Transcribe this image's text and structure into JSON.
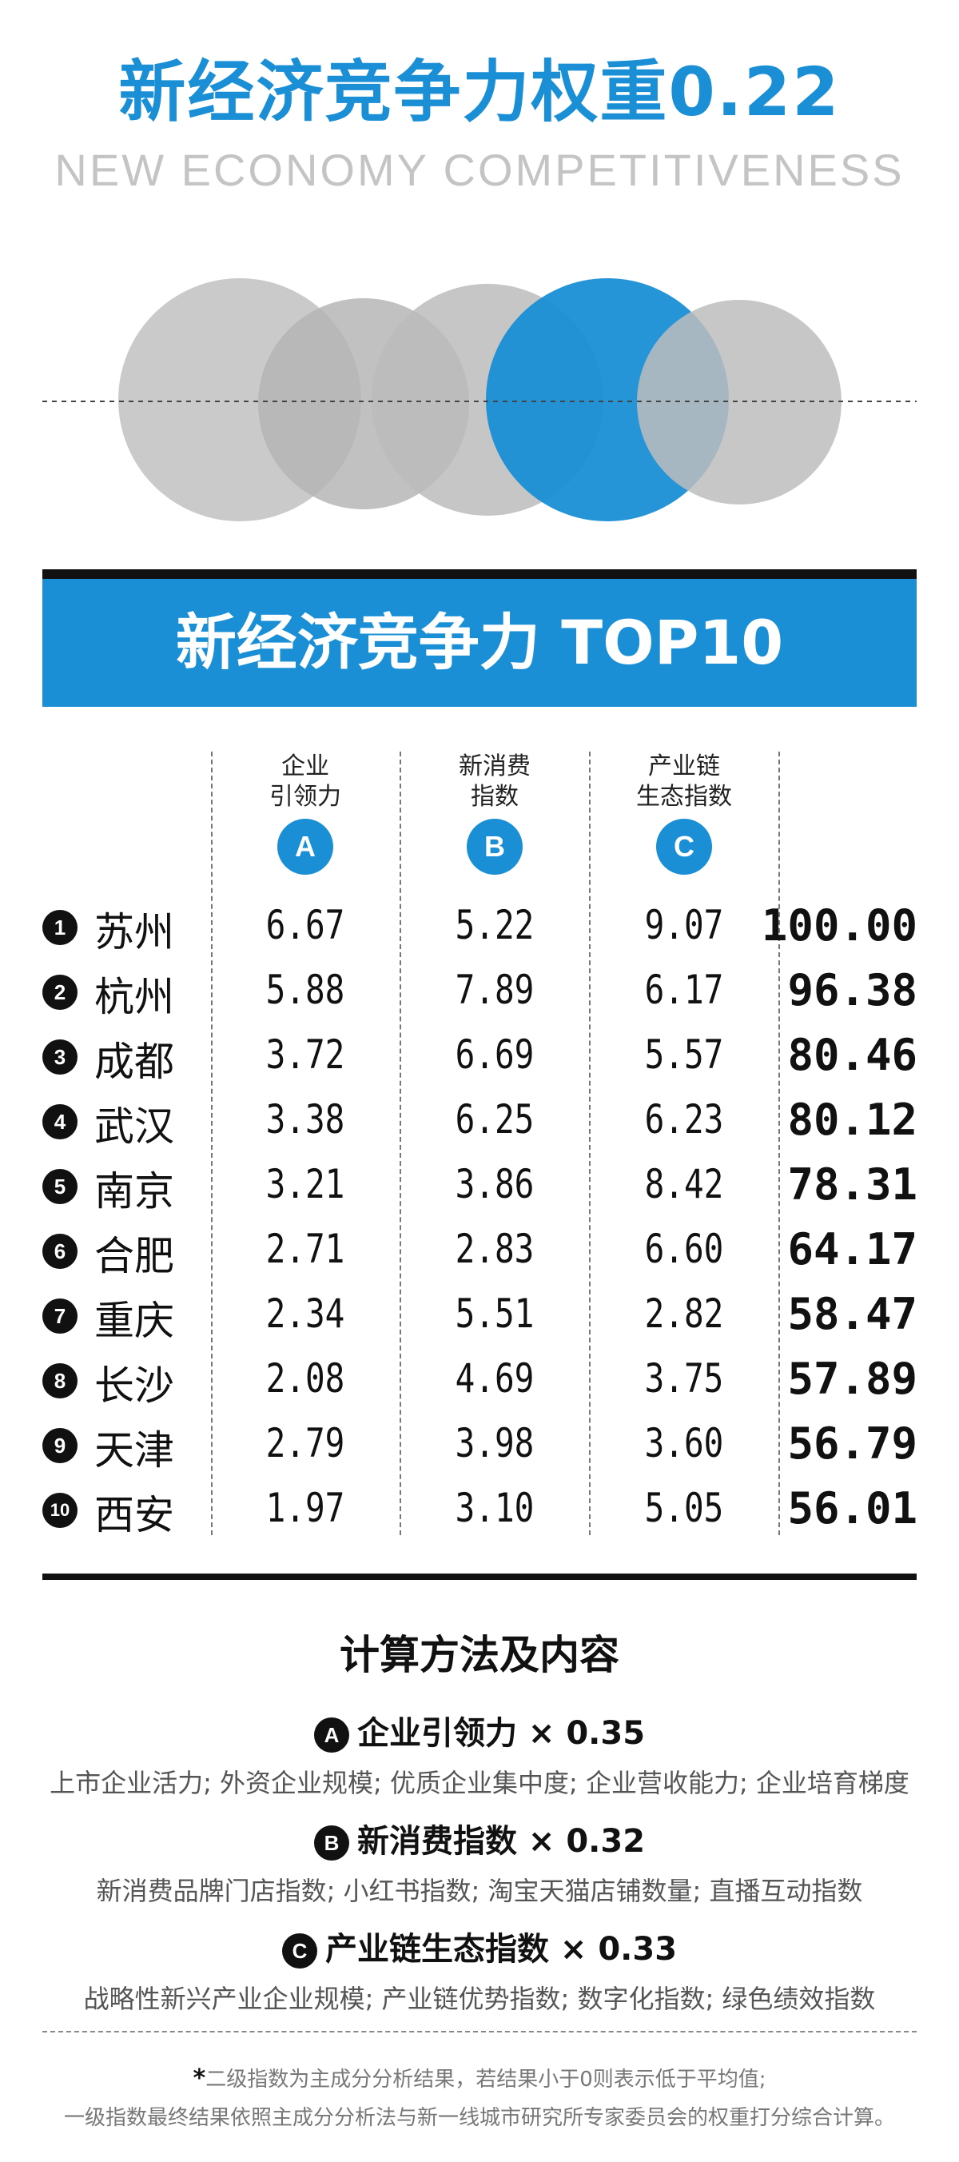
{
  "header": {
    "title": "新经济竞争力权重0.22",
    "subtitle": "NEW ECONOMY COMPETITIVENESS"
  },
  "colors": {
    "accent": "#1a8fd6",
    "gray_circle": "#bfbfbf",
    "dark": "#111111"
  },
  "banner": {
    "title": "新经济竞争力 TOP10"
  },
  "columns": [
    {
      "label_line1": "企业",
      "label_line2": "引领力",
      "badge": "A"
    },
    {
      "label_line1": "新消费",
      "label_line2": "指数",
      "badge": "B"
    },
    {
      "label_line1": "产业链",
      "label_line2": "生态指数",
      "badge": "C"
    }
  ],
  "rows": [
    {
      "rank": "1",
      "city": "苏州",
      "a": "6.67",
      "b": "5.22",
      "c": "9.07",
      "total": "100.00"
    },
    {
      "rank": "2",
      "city": "杭州",
      "a": "5.88",
      "b": "7.89",
      "c": "6.17",
      "total": "96.38"
    },
    {
      "rank": "3",
      "city": "成都",
      "a": "3.72",
      "b": "6.69",
      "c": "5.57",
      "total": "80.46"
    },
    {
      "rank": "4",
      "city": "武汉",
      "a": "3.38",
      "b": "6.25",
      "c": "6.23",
      "total": "80.12"
    },
    {
      "rank": "5",
      "city": "南京",
      "a": "3.21",
      "b": "3.86",
      "c": "8.42",
      "total": "78.31"
    },
    {
      "rank": "6",
      "city": "合肥",
      "a": "2.71",
      "b": "2.83",
      "c": "6.60",
      "total": "64.17"
    },
    {
      "rank": "7",
      "city": "重庆",
      "a": "2.34",
      "b": "5.51",
      "c": "2.82",
      "total": "58.47"
    },
    {
      "rank": "8",
      "city": "长沙",
      "a": "2.08",
      "b": "4.69",
      "c": "3.75",
      "total": "57.89"
    },
    {
      "rank": "9",
      "city": "天津",
      "a": "2.79",
      "b": "3.98",
      "c": "3.60",
      "total": "56.79"
    },
    {
      "rank": "10",
      "city": "西安",
      "a": "1.97",
      "b": "3.10",
      "c": "5.05",
      "total": "56.01"
    }
  ],
  "method": {
    "title": "计算方法及内容",
    "items": [
      {
        "badge": "A",
        "head": "企业引领力 × 0.35",
        "desc": "上市企业活力; 外资企业规模; 优质企业集中度; 企业营收能力; 企业培育梯度"
      },
      {
        "badge": "B",
        "head": "新消费指数 × 0.32",
        "desc": "新消费品牌门店指数; 小红书指数; 淘宝天猫店铺数量; 直播互动指数"
      },
      {
        "badge": "C",
        "head": "产业链生态指数 × 0.33",
        "desc": "战略性新兴产业企业规模; 产业链优势指数; 数字化指数; 绿色绩效指数"
      }
    ]
  },
  "notes": {
    "star": "*",
    "line1": "二级指数为主成分分析结果，若结果小于0则表示低于平均值;",
    "line2": "一级指数最终结果依照主成分分析法与新一线城市研究所专家委员会的权重打分综合计算。"
  }
}
